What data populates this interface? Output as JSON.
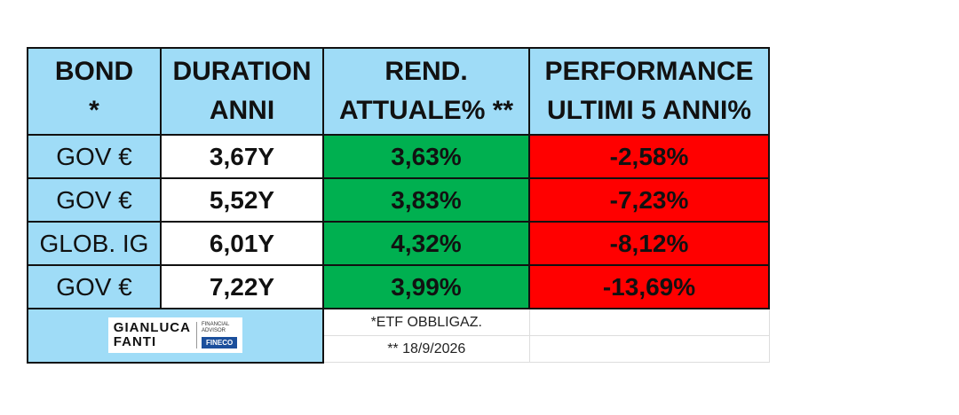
{
  "table": {
    "header": [
      [
        "BOND",
        "*"
      ],
      [
        "DURATION",
        "ANNI"
      ],
      [
        "REND.",
        "ATTUALE% **"
      ],
      [
        "PERFORMANCE",
        "ULTIMI 5 ANNI%"
      ]
    ],
    "rows": [
      [
        "GOV €",
        "3,67Y",
        "3,63%",
        "-2,58%"
      ],
      [
        "GOV €",
        "5,52Y",
        "3,83%",
        "-7,23%"
      ],
      [
        "GLOB. IG",
        "6,01Y",
        "4,32%",
        "-8,12%"
      ],
      [
        "GOV €",
        "7,22Y",
        "3,99%",
        "-13,69%"
      ]
    ],
    "notes": [
      "*ETF OBBLIGAZ.",
      "** 18/9/2026"
    ]
  },
  "logo": {
    "name": [
      "GIANLUCA",
      "FANTI"
    ],
    "role": [
      "FINANCIAL",
      "ADVISOR"
    ],
    "brand": "FINECO"
  }
}
